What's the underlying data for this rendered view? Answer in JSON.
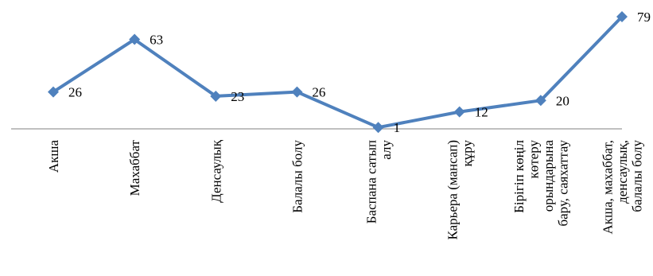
{
  "chart_data": {
    "type": "line",
    "title": "",
    "xlabel": "",
    "ylabel": "",
    "categories": [
      [
        "Акша"
      ],
      [
        "Махаббат"
      ],
      [
        "Денсаулық"
      ],
      [
        "Балалы болу"
      ],
      [
        "Баспана сатып",
        "алу"
      ],
      [
        "Карьера (мансап)",
        "құру"
      ],
      [
        "Бірігіп көңіл",
        "көтеру",
        "орындарына",
        "бару, саяхаттау"
      ],
      [
        "Акша, махаббат,",
        "денсаулық,",
        "балалы болу"
      ]
    ],
    "series": [
      {
        "values": [
          26,
          63,
          23,
          26,
          1,
          12,
          20,
          79
        ],
        "color": "#4f81bd",
        "marker": "diamond"
      }
    ],
    "data_labels": [
      "26",
      "63",
      "23",
      "26",
      "1",
      "12",
      "20",
      "79"
    ],
    "ylim": [
      0,
      79
    ],
    "grid": false,
    "legend": "none",
    "axis_color": "#808080"
  }
}
